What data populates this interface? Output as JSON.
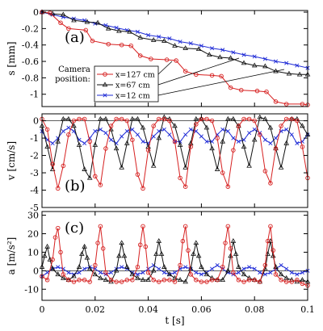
{
  "colors": {
    "red": "#d62020",
    "black": "#111111",
    "blue": "#1f2bd6"
  },
  "xaxis": {
    "label": "t [s]",
    "ticks": [
      0,
      0.02,
      0.04,
      0.06,
      0.08,
      0.1
    ],
    "tick_labels": [
      "0",
      "0.02",
      "0.04",
      "0.06",
      "0.08",
      "0.1"
    ]
  },
  "legend": {
    "title_line1": "Camera",
    "title_line2": "position:"
  },
  "chart_data": [
    {
      "type": "line",
      "panel_label": "(a)",
      "ylabel": "s [mm]",
      "xlim": [
        0,
        0.1
      ],
      "ylim": [
        -1.15,
        0.02
      ],
      "yticks": [
        0,
        -0.2,
        -0.4,
        -0.6,
        -0.8,
        -1
      ],
      "ytick_labels": [
        "0",
        "-0.2",
        "-0.4",
        "-0.6",
        "-0.8",
        "-1"
      ],
      "legend_position": "bottom-center",
      "series": [
        {
          "name": "x=127 cm",
          "color": "red",
          "marker": "circle",
          "x": [
            0,
            0.003,
            0.007,
            0.01,
            0.0165,
            0.019,
            0.025,
            0.03,
            0.0335,
            0.037,
            0.041,
            0.047,
            0.0505,
            0.054,
            0.058,
            0.064,
            0.0675,
            0.071,
            0.075,
            0.081,
            0.0845,
            0.088,
            0.092,
            0.098,
            0.1
          ],
          "y": [
            0,
            -0.01,
            -0.13,
            -0.2,
            -0.22,
            -0.35,
            -0.39,
            -0.4,
            -0.41,
            -0.53,
            -0.57,
            -0.58,
            -0.59,
            -0.72,
            -0.76,
            -0.77,
            -0.78,
            -0.92,
            -0.95,
            -0.96,
            -0.97,
            -1.09,
            -1.12,
            -1.12,
            -1.13
          ]
        },
        {
          "name": "x=67 cm",
          "color": "black",
          "marker": "triangle",
          "x": [
            0,
            0.004,
            0.008,
            0.012,
            0.017,
            0.021,
            0.025,
            0.029,
            0.033,
            0.037,
            0.042,
            0.046,
            0.05,
            0.054,
            0.059,
            0.063,
            0.067,
            0.071,
            0.076,
            0.08,
            0.084,
            0.088,
            0.093,
            0.097,
            0.1
          ],
          "y": [
            0,
            -0.02,
            -0.03,
            -0.1,
            -0.12,
            -0.13,
            -0.2,
            -0.23,
            -0.24,
            -0.31,
            -0.34,
            -0.35,
            -0.41,
            -0.44,
            -0.45,
            -0.52,
            -0.55,
            -0.56,
            -0.62,
            -0.65,
            -0.66,
            -0.72,
            -0.75,
            -0.76,
            -0.76
          ]
        },
        {
          "name": "x=12 cm",
          "color": "blue",
          "marker": "cross",
          "x": [
            0,
            0.004,
            0.008,
            0.012,
            0.016,
            0.02,
            0.024,
            0.028,
            0.032,
            0.036,
            0.04,
            0.044,
            0.048,
            0.052,
            0.056,
            0.06,
            0.064,
            0.068,
            0.072,
            0.076,
            0.08,
            0.084,
            0.088,
            0.092,
            0.096,
            0.1
          ],
          "y": [
            0,
            -0.03,
            -0.06,
            -0.08,
            -0.1,
            -0.14,
            -0.16,
            -0.19,
            -0.22,
            -0.24,
            -0.28,
            -0.3,
            -0.32,
            -0.36,
            -0.38,
            -0.41,
            -0.44,
            -0.46,
            -0.49,
            -0.52,
            -0.54,
            -0.57,
            -0.6,
            -0.62,
            -0.65,
            -0.68
          ]
        }
      ]
    },
    {
      "type": "line",
      "panel_label": "(b)",
      "ylabel": "v [cm/s]",
      "xlim": [
        0,
        0.1
      ],
      "ylim": [
        -5,
        0.4
      ],
      "yticks": [
        0,
        -1,
        -2,
        -3,
        -4,
        -5
      ],
      "ytick_labels": [
        "0",
        "-1",
        "-2",
        "-3",
        "-4",
        "-5"
      ],
      "series": [
        {
          "name": "x=127 cm",
          "color": "red",
          "marker": "circle",
          "x": [
            0,
            0.002,
            0.004,
            0.006,
            0.008,
            0.01,
            0.012,
            0.014,
            0.016,
            0.018,
            0.02,
            0.022,
            0.024,
            0.026,
            0.028,
            0.03,
            0.032,
            0.034,
            0.036,
            0.038,
            0.04,
            0.042,
            0.044,
            0.046,
            0.048,
            0.05,
            0.052,
            0.054,
            0.056,
            0.058,
            0.06,
            0.062,
            0.064,
            0.066,
            0.068,
            0.07,
            0.072,
            0.074,
            0.076,
            0.078,
            0.08,
            0.082,
            0.084,
            0.086,
            0.088,
            0.09,
            0.092,
            0.094,
            0.096,
            0.098,
            0.1
          ],
          "y": [
            0.1,
            -0.5,
            -2.5,
            -3.9,
            -2.6,
            -0.8,
            0,
            0.1,
            0.1,
            -1.2,
            -3.2,
            -3.7,
            -1.6,
            -0.3,
            0.1,
            0.1,
            0,
            -1.1,
            -3.1,
            -3.9,
            -1.7,
            -0.3,
            0.1,
            0.1,
            0,
            -1.2,
            -3.3,
            -3.8,
            -1.5,
            -0.2,
            0.1,
            0.1,
            0,
            -1.0,
            -3.0,
            -3.8,
            -1.7,
            -0.3,
            0.1,
            0.1,
            0,
            -0.8,
            -2.9,
            -3.6,
            -1.6,
            -0.3,
            0.1,
            0.1,
            0,
            -1.5,
            -3.3
          ]
        },
        {
          "name": "x=67 cm",
          "color": "black",
          "marker": "triangle",
          "x": [
            0,
            0.002,
            0.004,
            0.006,
            0.008,
            0.01,
            0.012,
            0.014,
            0.016,
            0.018,
            0.02,
            0.022,
            0.024,
            0.026,
            0.028,
            0.03,
            0.032,
            0.034,
            0.036,
            0.038,
            0.04,
            0.042,
            0.044,
            0.046,
            0.048,
            0.05,
            0.052,
            0.054,
            0.056,
            0.058,
            0.06,
            0.062,
            0.064,
            0.066,
            0.068,
            0.07,
            0.072,
            0.074,
            0.076,
            0.078,
            0.08,
            0.082,
            0.084,
            0.086,
            0.088,
            0.09,
            0.092,
            0.094,
            0.096,
            0.098,
            0.1
          ],
          "y": [
            -0.3,
            -1.5,
            -2.8,
            -1.2,
            0.1,
            0.1,
            -0.3,
            -1.4,
            -2.8,
            -3.3,
            -1.4,
            0.1,
            0.1,
            -0.5,
            -1.6,
            -2.7,
            -1.3,
            0.1,
            0.1,
            -0.4,
            -1.5,
            -2.6,
            -1.0,
            0.2,
            0.1,
            -0.3,
            -1.4,
            -2.7,
            -1.3,
            0.1,
            0.1,
            -0.4,
            -1.6,
            -2.8,
            -1.2,
            0.1,
            0.1,
            -0.3,
            -1.5,
            -2.6,
            -1.1,
            0.2,
            0.1,
            -0.4,
            -1.6,
            -2.7,
            -1.3,
            0.1,
            0.1,
            -0.3,
            -0.8
          ]
        },
        {
          "name": "x=12 cm",
          "color": "blue",
          "marker": "cross",
          "x": [
            0,
            0.002,
            0.004,
            0.006,
            0.008,
            0.01,
            0.012,
            0.014,
            0.016,
            0.018,
            0.02,
            0.022,
            0.024,
            0.026,
            0.028,
            0.03,
            0.032,
            0.034,
            0.036,
            0.038,
            0.04,
            0.042,
            0.044,
            0.046,
            0.048,
            0.05,
            0.052,
            0.054,
            0.056,
            0.058,
            0.06,
            0.062,
            0.064,
            0.066,
            0.068,
            0.07,
            0.072,
            0.074,
            0.076,
            0.078,
            0.08,
            0.082,
            0.084,
            0.086,
            0.088,
            0.09,
            0.092,
            0.094,
            0.096,
            0.098,
            0.1
          ],
          "y": [
            -0.6,
            -1.1,
            -1.3,
            -1.0,
            -0.6,
            -0.4,
            -0.6,
            -1.1,
            -1.3,
            -1.0,
            -0.6,
            -0.5,
            -0.7,
            -1.1,
            -1.3,
            -0.9,
            -0.6,
            -0.5,
            -0.8,
            -1.2,
            -1.3,
            -0.9,
            -0.6,
            -0.5,
            -0.8,
            -1.2,
            -1.2,
            -0.8,
            -0.5,
            -0.6,
            -0.9,
            -1.2,
            -1.2,
            -0.8,
            -0.5,
            -0.6,
            -1.0,
            -1.2,
            -1.1,
            -0.7,
            -0.5,
            -0.7,
            -1.1,
            -1.3,
            -1.0,
            -0.6,
            -0.5,
            -0.8,
            -1.3,
            -1.2,
            -0.8
          ]
        }
      ]
    },
    {
      "type": "line",
      "panel_label": "(c)",
      "ylabel": "a [m/s²]",
      "xlim": [
        0,
        0.1
      ],
      "ylim": [
        -16,
        32
      ],
      "yticks": [
        -10,
        0,
        10,
        20,
        30
      ],
      "ytick_labels": [
        "-10",
        "0",
        "10",
        "20",
        "30"
      ],
      "series": [
        {
          "name": "x=127 cm",
          "color": "red",
          "marker": "circle",
          "x": [
            0,
            0.002,
            0.004,
            0.005,
            0.006,
            0.007,
            0.008,
            0.01,
            0.012,
            0.014,
            0.016,
            0.018,
            0.02,
            0.021,
            0.022,
            0.023,
            0.024,
            0.026,
            0.028,
            0.03,
            0.032,
            0.034,
            0.036,
            0.037,
            0.038,
            0.039,
            0.04,
            0.042,
            0.044,
            0.046,
            0.048,
            0.05,
            0.052,
            0.053,
            0.054,
            0.055,
            0.056,
            0.058,
            0.06,
            0.062,
            0.064,
            0.066,
            0.068,
            0.069,
            0.07,
            0.071,
            0.072,
            0.074,
            0.076,
            0.078,
            0.08,
            0.082,
            0.084,
            0.085,
            0.086,
            0.087,
            0.088,
            0.09,
            0.092,
            0.094,
            0.096,
            0.098,
            0.1
          ],
          "y": [
            -3,
            -5,
            6,
            18,
            23,
            10,
            -2,
            -5,
            -6,
            -5,
            -5,
            -6,
            3,
            15,
            24,
            12,
            -1,
            -5,
            -6,
            -6,
            -5,
            -5,
            2,
            14,
            24,
            13,
            -1,
            -5,
            -6,
            -5,
            -5,
            -6,
            3,
            16,
            24,
            11,
            -2,
            -5,
            -6,
            -6,
            -5,
            -5,
            2,
            15,
            24,
            12,
            -1,
            -5,
            -6,
            -5,
            -5,
            -6,
            3,
            16,
            24,
            11,
            -2,
            -5,
            -6,
            -6,
            -5,
            -7,
            -8
          ]
        },
        {
          "name": "x=67 cm",
          "color": "black",
          "marker": "triangle",
          "x": [
            0,
            0.001,
            0.002,
            0.003,
            0.004,
            0.006,
            0.008,
            0.01,
            0.012,
            0.014,
            0.015,
            0.016,
            0.017,
            0.018,
            0.02,
            0.022,
            0.024,
            0.026,
            0.028,
            0.029,
            0.03,
            0.031,
            0.032,
            0.034,
            0.036,
            0.038,
            0.04,
            0.042,
            0.043,
            0.044,
            0.045,
            0.046,
            0.048,
            0.05,
            0.052,
            0.054,
            0.056,
            0.057,
            0.058,
            0.059,
            0.06,
            0.062,
            0.064,
            0.066,
            0.068,
            0.07,
            0.071,
            0.072,
            0.073,
            0.074,
            0.076,
            0.078,
            0.08,
            0.082,
            0.084,
            0.085,
            0.086,
            0.087,
            0.088,
            0.09,
            0.092,
            0.094,
            0.096,
            0.098,
            0.1
          ],
          "y": [
            2,
            8,
            13,
            6,
            1,
            -2,
            -4,
            -5,
            -3,
            2,
            9,
            13,
            7,
            1,
            -2,
            -4,
            -5,
            -6,
            0,
            8,
            15,
            8,
            2,
            -2,
            -4,
            -5,
            -5,
            0,
            9,
            16,
            9,
            2,
            -2,
            -4,
            -5,
            -6,
            1,
            9,
            15,
            8,
            2,
            -2,
            -4,
            -5,
            -5,
            0,
            8,
            16,
            9,
            2,
            -2,
            -4,
            -5,
            -6,
            1,
            9,
            16,
            8,
            2,
            -2,
            -4,
            -5,
            -6,
            -5,
            -6
          ]
        },
        {
          "name": "x=12 cm",
          "color": "blue",
          "marker": "cross",
          "x": [
            0,
            0.002,
            0.004,
            0.006,
            0.008,
            0.01,
            0.012,
            0.014,
            0.016,
            0.018,
            0.02,
            0.022,
            0.024,
            0.026,
            0.028,
            0.03,
            0.032,
            0.034,
            0.036,
            0.038,
            0.04,
            0.042,
            0.044,
            0.046,
            0.048,
            0.05,
            0.052,
            0.054,
            0.056,
            0.058,
            0.06,
            0.062,
            0.064,
            0.066,
            0.068,
            0.07,
            0.072,
            0.074,
            0.076,
            0.078,
            0.08,
            0.082,
            0.084,
            0.086,
            0.088,
            0.09,
            0.092,
            0.094,
            0.096,
            0.098,
            0.1
          ],
          "y": [
            -3,
            -1,
            1,
            2,
            1,
            -1,
            -2,
            -1,
            1,
            2,
            1,
            -1,
            -2,
            -1,
            1,
            2,
            1,
            -1,
            -2,
            -1,
            1,
            3,
            1,
            -1,
            -2,
            -1,
            1,
            2,
            1,
            -1,
            -2,
            -1,
            1,
            3,
            1,
            -1,
            -2,
            -1,
            1,
            2,
            1,
            -1,
            -2,
            -1,
            1,
            3,
            1,
            -1,
            -2,
            -1,
            0
          ]
        }
      ]
    }
  ]
}
